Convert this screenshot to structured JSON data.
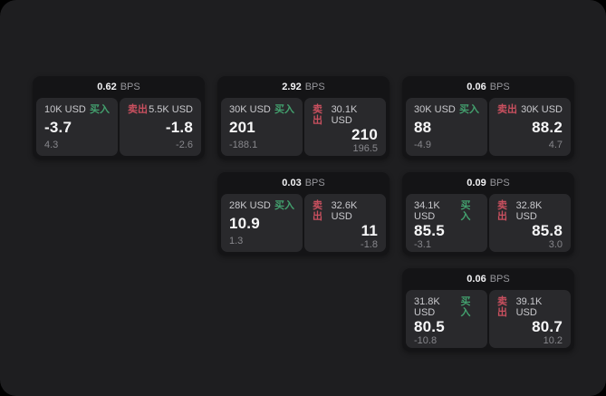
{
  "window": {
    "background_color": "#1e1e20",
    "card_color": "#141416",
    "panel_color": "#29292c"
  },
  "colors": {
    "buy_green": "#43a06e",
    "sell_red": "#c9505f"
  },
  "cards": [
    {
      "bps_value": "0.62",
      "bps_unit": "BPS",
      "buy": {
        "amount": "10K USD",
        "side_label": "买入",
        "value": "-3.7",
        "delta": "4.3"
      },
      "sell": {
        "side_label": "卖出",
        "amount": "5.5K USD",
        "value": "-1.8",
        "delta": "-2.6"
      }
    },
    {
      "bps_value": "2.92",
      "bps_unit": "BPS",
      "buy": {
        "amount": "30K USD",
        "side_label": "买入",
        "value": "201",
        "delta": "-188.1"
      },
      "sell": {
        "side_label": "卖出",
        "amount": "30.1K USD",
        "value": "210",
        "delta": "196.5"
      }
    },
    {
      "bps_value": "0.06",
      "bps_unit": "BPS",
      "buy": {
        "amount": "30K USD",
        "side_label": "买入",
        "value": "88",
        "delta": "-4.9"
      },
      "sell": {
        "side_label": "卖出",
        "amount": "30K USD",
        "value": "88.2",
        "delta": "4.7"
      }
    },
    {
      "bps_value": "0.03",
      "bps_unit": "BPS",
      "buy": {
        "amount": "28K USD",
        "side_label": "买入",
        "value": "10.9",
        "delta": "1.3"
      },
      "sell": {
        "side_label": "卖出",
        "amount": "32.6K USD",
        "value": "11",
        "delta": "-1.8"
      }
    },
    {
      "bps_value": "0.09",
      "bps_unit": "BPS",
      "buy": {
        "amount": "34.1K USD",
        "side_label": "买入",
        "value": "85.5",
        "delta": "-3.1"
      },
      "sell": {
        "side_label": "卖出",
        "amount": "32.8K USD",
        "value": "85.8",
        "delta": "3.0"
      }
    },
    {
      "bps_value": "0.06",
      "bps_unit": "BPS",
      "buy": {
        "amount": "31.8K USD",
        "side_label": "买入",
        "value": "80.5",
        "delta": "-10.8"
      },
      "sell": {
        "side_label": "卖出",
        "amount": "39.1K USD",
        "value": "80.7",
        "delta": "10.2"
      }
    }
  ]
}
